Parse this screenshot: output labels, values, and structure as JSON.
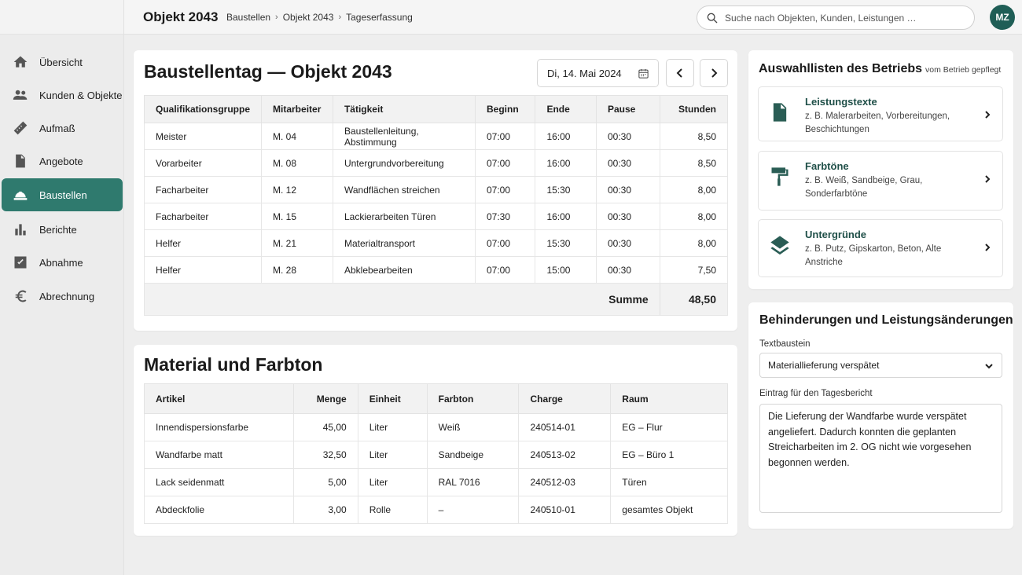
{
  "header": {
    "title": "Objekt 2043",
    "breadcrumb": [
      "Baustellen",
      "Objekt 2043",
      "Tageserfassung"
    ],
    "search_placeholder": "Suche nach Objekten, Kunden, Leistungen …",
    "avatar_initials": "MZ"
  },
  "sidebar": {
    "items": [
      {
        "label": "Übersicht",
        "icon": "home-icon"
      },
      {
        "label": "Kunden & Objekte",
        "icon": "people-icon"
      },
      {
        "label": "Aufmaß",
        "icon": "ruler-icon"
      },
      {
        "label": "Angebote",
        "icon": "document-icon"
      },
      {
        "label": "Baustellen",
        "icon": "hardhat-icon",
        "active": true
      },
      {
        "label": "Berichte",
        "icon": "bar-chart-icon"
      },
      {
        "label": "Abnahme",
        "icon": "checkbox-icon"
      },
      {
        "label": "Abrechnung",
        "icon": "euro-icon"
      }
    ]
  },
  "day": {
    "title": "Baustellentag — Objekt 2043",
    "date": "Di, 14. Mai 2024",
    "columns": [
      "Qualifikationsgruppe",
      "Mitarbeiter",
      "Tätigkeit",
      "Beginn",
      "Ende",
      "Pause",
      "Stunden"
    ],
    "rows": [
      [
        "Meister",
        "M. 04",
        "Baustellenleitung, Abstimmung",
        "07:00",
        "16:00",
        "00:30",
        "8,50"
      ],
      [
        "Vorarbeiter",
        "M. 08",
        "Untergrundvorbereitung",
        "07:00",
        "16:00",
        "00:30",
        "8,50"
      ],
      [
        "Facharbeiter",
        "M. 12",
        "Wandflächen streichen",
        "07:00",
        "15:30",
        "00:30",
        "8,00"
      ],
      [
        "Facharbeiter",
        "M. 15",
        "Lackierarbeiten Türen",
        "07:30",
        "16:00",
        "00:30",
        "8,00"
      ],
      [
        "Helfer",
        "M. 21",
        "Materialtransport",
        "07:00",
        "15:30",
        "00:30",
        "8,00"
      ],
      [
        "Helfer",
        "M. 28",
        "Abklebearbeiten",
        "07:00",
        "15:00",
        "00:30",
        "7,50"
      ]
    ],
    "sum_label": "Summe",
    "sum_value": "48,50"
  },
  "material": {
    "title": "Material und Farbton",
    "columns": [
      "Artikel",
      "Menge",
      "Einheit",
      "Farbton",
      "Charge",
      "Raum"
    ],
    "rows": [
      [
        "Innendispersionsfarbe",
        "45,00",
        "Liter",
        "Weiß",
        "240514-01",
        "EG – Flur"
      ],
      [
        "Wandfarbe matt",
        "32,50",
        "Liter",
        "Sandbeige",
        "240513-02",
        "EG – Büro 1"
      ],
      [
        "Lack seidenmatt",
        "5,00",
        "Liter",
        "RAL 7016",
        "240512-03",
        "Türen"
      ],
      [
        "Abdeckfolie",
        "3,00",
        "Rolle",
        "–",
        "240510-01",
        "gesamtes Objekt"
      ]
    ]
  },
  "lists": {
    "title": "Auswahllisten des Betriebs",
    "note": "vom Betrieb gepflegt",
    "items": [
      {
        "title": "Leistungstexte",
        "desc": "z. B. Malerarbeiten, Vorbereitungen, Beschichtungen",
        "icon": "document-icon"
      },
      {
        "title": "Farbtöne",
        "desc": "z. B. Weiß, Sandbeige, Grau, Sonderfarbtöne",
        "icon": "paint-roller-icon"
      },
      {
        "title": "Untergründe",
        "desc": "z. B. Putz, Gipskarton, Beton, Alte Anstriche",
        "icon": "layers-icon"
      }
    ]
  },
  "hindrance": {
    "title": "Behinderungen und Leistungsänderungen",
    "template_label": "Textbaustein",
    "template_value": "Materiallieferung verspätet",
    "entry_label": "Eintrag für den Tagesbericht",
    "entry_text": "Die Lieferung der Wandfarbe wurde verspätet angeliefert. Dadurch konnten die geplanten Streicharbeiten im 2. OG nicht wie vorgesehen begonnen werden."
  }
}
